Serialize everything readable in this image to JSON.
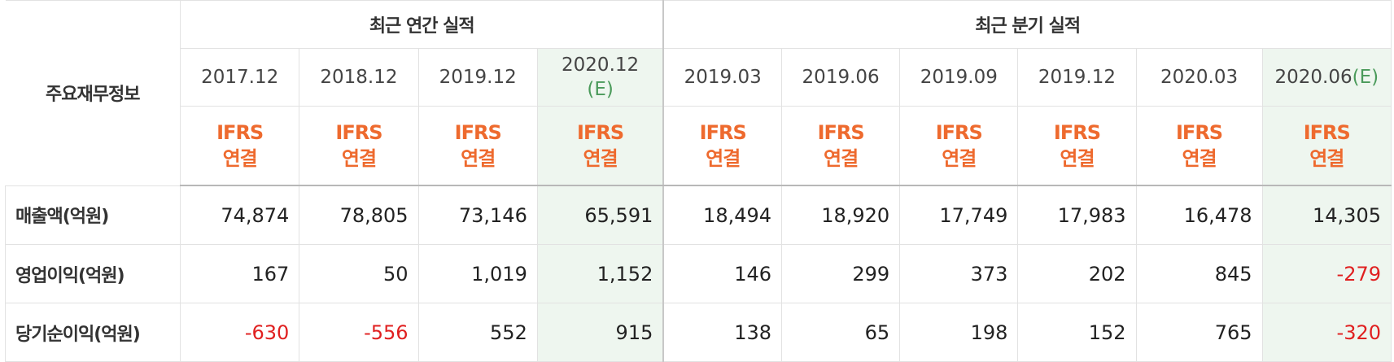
{
  "header": {
    "corner_label": "주요재무정보",
    "annual_group": "최근 연간 실적",
    "quarterly_group": "최근 분기 실적"
  },
  "periods": [
    {
      "label": "2017.12",
      "est": "",
      "estimated": false
    },
    {
      "label": "2018.12",
      "est": "",
      "estimated": false
    },
    {
      "label": "2019.12",
      "est": "",
      "estimated": false
    },
    {
      "label": "2020.12",
      "est": "(E)",
      "estimated": true
    },
    {
      "label": "2019.03",
      "est": "",
      "estimated": false
    },
    {
      "label": "2019.06",
      "est": "",
      "estimated": false
    },
    {
      "label": "2019.09",
      "est": "",
      "estimated": false
    },
    {
      "label": "2019.12",
      "est": "",
      "estimated": false
    },
    {
      "label": "2020.03",
      "est": "",
      "estimated": false
    },
    {
      "label": "2020.06",
      "est": "(E)",
      "estimated": true
    }
  ],
  "standard": {
    "line1": "IFRS",
    "line2": "연결"
  },
  "rows": [
    {
      "label": "매출액(억원)",
      "values": [
        "74,874",
        "78,805",
        "73,146",
        "65,591",
        "18,494",
        "18,920",
        "17,749",
        "17,983",
        "16,478",
        "14,305"
      ]
    },
    {
      "label": "영업이익(억원)",
      "values": [
        "167",
        "50",
        "1,019",
        "1,152",
        "146",
        "299",
        "373",
        "202",
        "845",
        "-279"
      ]
    },
    {
      "label": "당기순이익(억원)",
      "values": [
        "-630",
        "-556",
        "552",
        "915",
        "138",
        "65",
        "198",
        "152",
        "765",
        "-320"
      ]
    }
  ],
  "colors": {
    "standard_text": "#ee6a2e",
    "negative_value": "#e02020",
    "estimate_text": "#4a9a5a",
    "estimate_bg": "#eef6ef"
  }
}
